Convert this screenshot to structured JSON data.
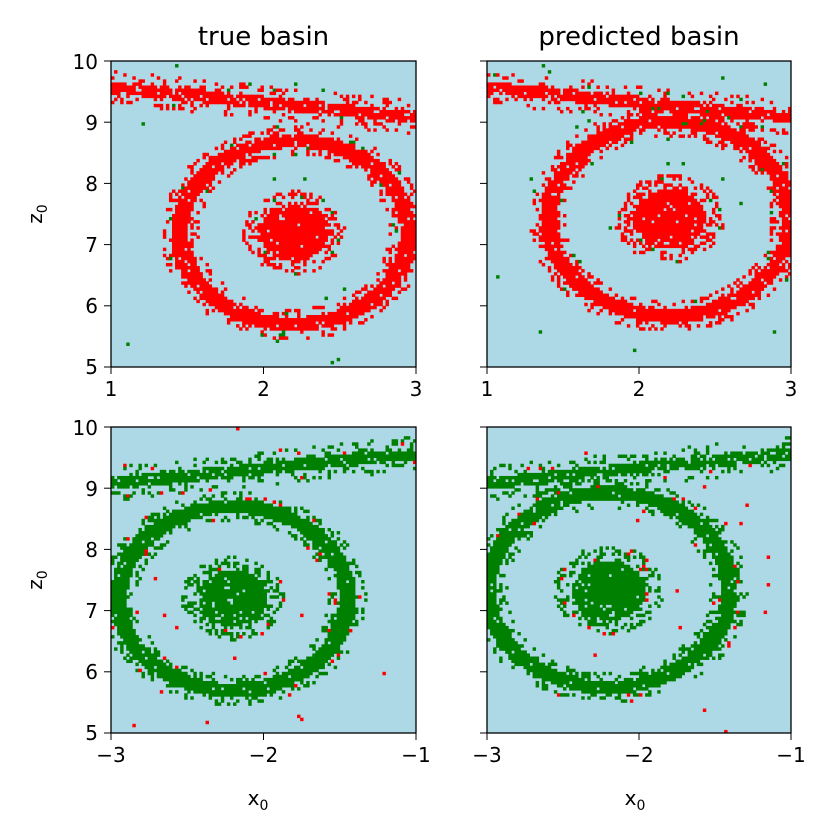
{
  "colors": {
    "background": "#add8e6",
    "red_basin": "#ff0000",
    "green_basin": "#008000"
  },
  "chart_data": [
    {
      "type": "heatmap",
      "title": "true basin",
      "xlabel": "",
      "ylabel": "z0",
      "xlim": [
        1,
        3
      ],
      "ylim": [
        5,
        10
      ],
      "xticks": [
        "1",
        "2",
        "3"
      ],
      "yticks": [
        "5",
        "6",
        "7",
        "8",
        "9",
        "10"
      ],
      "color": "red",
      "spiral": {
        "center": [
          2.2,
          7.2
        ],
        "arms": [
          "ring around center radius ~1.5 in z",
          "outer arm crossing top at z 9-10"
        ]
      }
    },
    {
      "type": "heatmap",
      "title": "predicted basin",
      "xlabel": "",
      "ylabel": "",
      "xlim": [
        1,
        3
      ],
      "ylim": [
        5,
        10
      ],
      "xticks": [
        "1",
        "2",
        "3"
      ],
      "yticks": [],
      "color": "red",
      "spiral": {
        "center": [
          2.2,
          7.4
        ],
        "arms": [
          "ring around center radius ~1.5 in z",
          "outer arm crossing top at z 9-10"
        ]
      }
    },
    {
      "type": "heatmap",
      "title": "",
      "xlabel": "x0",
      "ylabel": "z0",
      "xlim": [
        -3,
        -1
      ],
      "ylim": [
        5,
        10
      ],
      "xticks": [
        "−3",
        "−2",
        "−1"
      ],
      "yticks": [
        "5",
        "6",
        "7",
        "8",
        "9",
        "10"
      ],
      "color": "green",
      "spiral": {
        "center": [
          -2.2,
          7.2
        ],
        "arms": [
          "ring around center radius ~1.5 in z",
          "outer arm crossing top at z 9-10"
        ]
      }
    },
    {
      "type": "heatmap",
      "title": "",
      "xlabel": "x0",
      "ylabel": "",
      "xlim": [
        -3,
        -1
      ],
      "ylim": [
        5,
        10
      ],
      "xticks": [
        "−3",
        "−2",
        "−1"
      ],
      "yticks": [],
      "color": "green",
      "spiral": {
        "center": [
          -2.2,
          7.3
        ],
        "arms": [
          "ring around center radius ~1.5 in z",
          "outer arm crossing top at z 9-10"
        ]
      }
    }
  ]
}
